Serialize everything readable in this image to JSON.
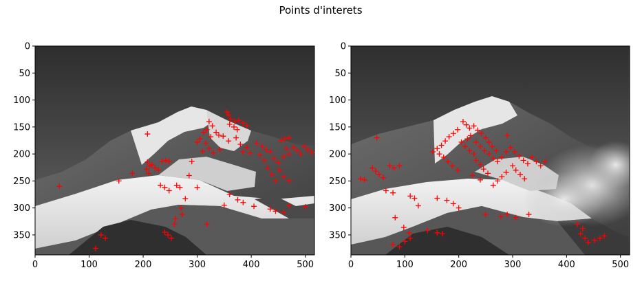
{
  "chart_data": {
    "title": "Points d'interets",
    "panels": [
      {
        "type": "scatter",
        "marker": "+",
        "marker_color": "#ff0000",
        "background": "grayscale photograph: snow-covered mountain peak under a dark sky",
        "xlim": [
          0,
          517
        ],
        "ylim": [
          387,
          0
        ],
        "xticks": [
          0,
          100,
          200,
          300,
          400,
          500
        ],
        "yticks": [
          0,
          50,
          100,
          150,
          200,
          250,
          300,
          350
        ],
        "points": [
          [
            355,
            122
          ],
          [
            358,
            128
          ],
          [
            362,
            136
          ],
          [
            370,
            140
          ],
          [
            377,
            138
          ],
          [
            385,
            143
          ],
          [
            392,
            148
          ],
          [
            360,
            145
          ],
          [
            368,
            150
          ],
          [
            374,
            155
          ],
          [
            322,
            140
          ],
          [
            328,
            148
          ],
          [
            318,
            155
          ],
          [
            335,
            160
          ],
          [
            340,
            165
          ],
          [
            348,
            167
          ],
          [
            312,
            160
          ],
          [
            325,
            168
          ],
          [
            305,
            172
          ],
          [
            300,
            178
          ],
          [
            316,
            180
          ],
          [
            322,
            190
          ],
          [
            310,
            195
          ],
          [
            330,
            198
          ],
          [
            342,
            192
          ],
          [
            358,
            176
          ],
          [
            372,
            170
          ],
          [
            380,
            182
          ],
          [
            392,
            188
          ],
          [
            398,
            198
          ],
          [
            385,
            196
          ],
          [
            410,
            180
          ],
          [
            420,
            186
          ],
          [
            428,
            192
          ],
          [
            416,
            202
          ],
          [
            424,
            212
          ],
          [
            435,
            196
          ],
          [
            442,
            208
          ],
          [
            450,
            216
          ],
          [
            460,
            205
          ],
          [
            465,
            190
          ],
          [
            470,
            200
          ],
          [
            478,
            188
          ],
          [
            485,
            194
          ],
          [
            492,
            200
          ],
          [
            498,
            186
          ],
          [
            505,
            192
          ],
          [
            512,
            197
          ],
          [
            462,
            172
          ],
          [
            470,
            170
          ],
          [
            455,
            175
          ],
          [
            430,
            226
          ],
          [
            438,
            238
          ],
          [
            445,
            250
          ],
          [
            452,
            230
          ],
          [
            460,
            242
          ],
          [
            470,
            250
          ],
          [
            208,
            163
          ],
          [
            208,
            215
          ],
          [
            212,
            222
          ],
          [
            206,
            228
          ],
          [
            210,
            236
          ],
          [
            216,
            220
          ],
          [
            222,
            226
          ],
          [
            228,
            230
          ],
          [
            235,
            214
          ],
          [
            242,
            212
          ],
          [
            248,
            214
          ],
          [
            232,
            258
          ],
          [
            240,
            262
          ],
          [
            248,
            268
          ],
          [
            262,
            258
          ],
          [
            268,
            262
          ],
          [
            300,
            262
          ],
          [
            285,
            240
          ],
          [
            290,
            214
          ],
          [
            180,
            236
          ],
          [
            155,
            250
          ],
          [
            45,
            260
          ],
          [
            360,
            275
          ],
          [
            375,
            285
          ],
          [
            385,
            290
          ],
          [
            350,
            295
          ],
          [
            405,
            297
          ],
          [
            435,
            302
          ],
          [
            445,
            306
          ],
          [
            460,
            308
          ],
          [
            470,
            296
          ],
          [
            500,
            298
          ],
          [
            278,
            283
          ],
          [
            270,
            300
          ],
          [
            272,
            312
          ],
          [
            260,
            320
          ],
          [
            258,
            330
          ],
          [
            318,
            330
          ],
          [
            240,
            345
          ],
          [
            246,
            350
          ],
          [
            252,
            356
          ],
          [
            122,
            350
          ],
          [
            130,
            356
          ],
          [
            112,
            375
          ]
        ]
      },
      {
        "type": "scatter",
        "marker": "+",
        "marker_color": "#ff0000",
        "background": "grayscale photograph: same mountain with low clouds on the right slope",
        "xlim": [
          0,
          517
        ],
        "ylim": [
          387,
          0
        ],
        "xticks": [
          0,
          100,
          200,
          300,
          400,
          500
        ],
        "yticks": [
          0,
          50,
          100,
          150,
          200,
          250,
          300,
          350
        ],
        "points": [
          [
            208,
            140
          ],
          [
            214,
            146
          ],
          [
            220,
            152
          ],
          [
            228,
            148
          ],
          [
            235,
            156
          ],
          [
            242,
            162
          ],
          [
            222,
            166
          ],
          [
            216,
            172
          ],
          [
            232,
            178
          ],
          [
            250,
            170
          ],
          [
            198,
            155
          ],
          [
            190,
            162
          ],
          [
            182,
            168
          ],
          [
            175,
            176
          ],
          [
            168,
            184
          ],
          [
            160,
            190
          ],
          [
            152,
            196
          ],
          [
            164,
            200
          ],
          [
            172,
            206
          ],
          [
            180,
            214
          ],
          [
            188,
            222
          ],
          [
            198,
            230
          ],
          [
            205,
            178
          ],
          [
            212,
            186
          ],
          [
            220,
            194
          ],
          [
            228,
            200
          ],
          [
            240,
            186
          ],
          [
            248,
            194
          ],
          [
            256,
            200
          ],
          [
            264,
            208
          ],
          [
            272,
            214
          ],
          [
            280,
            206
          ],
          [
            288,
            196
          ],
          [
            296,
            188
          ],
          [
            304,
            196
          ],
          [
            312,
            204
          ],
          [
            320,
            212
          ],
          [
            328,
            218
          ],
          [
            336,
            206
          ],
          [
            344,
            214
          ],
          [
            352,
            222
          ],
          [
            360,
            214
          ],
          [
            300,
            222
          ],
          [
            306,
            230
          ],
          [
            314,
            238
          ],
          [
            322,
            246
          ],
          [
            288,
            234
          ],
          [
            280,
            242
          ],
          [
            272,
            250
          ],
          [
            264,
            258
          ],
          [
            290,
            166
          ],
          [
            256,
            178
          ],
          [
            262,
            186
          ],
          [
            270,
            194
          ],
          [
            232,
            212
          ],
          [
            240,
            220
          ],
          [
            246,
            228
          ],
          [
            254,
            236
          ],
          [
            226,
            240
          ],
          [
            240,
            248
          ],
          [
            48,
            170
          ],
          [
            40,
            226
          ],
          [
            46,
            232
          ],
          [
            52,
            238
          ],
          [
            60,
            244
          ],
          [
            72,
            222
          ],
          [
            80,
            226
          ],
          [
            90,
            222
          ],
          [
            18,
            246
          ],
          [
            25,
            248
          ],
          [
            65,
            268
          ],
          [
            78,
            272
          ],
          [
            110,
            278
          ],
          [
            118,
            282
          ],
          [
            160,
            282
          ],
          [
            178,
            286
          ],
          [
            190,
            292
          ],
          [
            125,
            296
          ],
          [
            200,
            300
          ],
          [
            250,
            312
          ],
          [
            278,
            316
          ],
          [
            290,
            312
          ],
          [
            306,
            318
          ],
          [
            330,
            312
          ],
          [
            82,
            318
          ],
          [
            98,
            336
          ],
          [
            108,
            346
          ],
          [
            142,
            342
          ],
          [
            160,
            346
          ],
          [
            170,
            348
          ],
          [
            100,
            362
          ],
          [
            110,
            356
          ],
          [
            78,
            368
          ],
          [
            90,
            372
          ],
          [
            420,
            330
          ],
          [
            430,
            338
          ],
          [
            426,
            348
          ],
          [
            434,
            356
          ],
          [
            440,
            364
          ],
          [
            452,
            360
          ],
          [
            462,
            356
          ],
          [
            470,
            352
          ]
        ]
      }
    ]
  }
}
